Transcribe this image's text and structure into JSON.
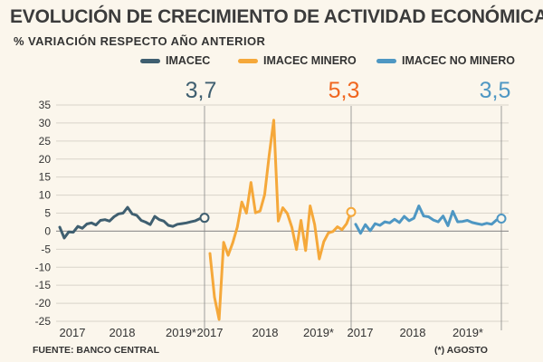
{
  "chart_data": {
    "type": "line",
    "title": "EVOLUCIÓN DE CRECIMIENTO DE ACTIVIDAD ECONÓMICA",
    "subtitle": "% VARIACIÓN RESPECTO AÑO ANTERIOR",
    "ylim": [
      -25,
      35
    ],
    "yticks": [
      35,
      30,
      25,
      20,
      15,
      10,
      5,
      0,
      -5,
      -10,
      -15,
      -20,
      -25
    ],
    "source": "FUENTE: BANCO CENTRAL",
    "footnote": "(*) AGOSTO",
    "series": [
      {
        "name": "IMACEC",
        "color": "#3f5f70",
        "x_labels": [
          "2017",
          "2018",
          "2019*"
        ],
        "last_value_label": "3,7",
        "values": [
          1.1,
          -1.9,
          -0.2,
          -0.3,
          1.3,
          0.8,
          2.0,
          2.3,
          1.7,
          3.0,
          3.2,
          2.8,
          4.0,
          4.8,
          5.0,
          6.6,
          4.8,
          4.4,
          3.0,
          2.5,
          1.8,
          4.1,
          3.2,
          2.8,
          1.6,
          1.3,
          1.9,
          2.1,
          2.3,
          2.6,
          2.9,
          3.5,
          3.7
        ]
      },
      {
        "name": "IMACEC MINERO",
        "color": "#f5a83a",
        "x_labels": [
          "2017",
          "2018",
          "2019*"
        ],
        "last_value_label": "5,3",
        "values": [
          -6.2,
          -18.3,
          -24.5,
          -3.1,
          -6.7,
          -3.2,
          1.1,
          8.1,
          5.0,
          13.5,
          5.1,
          5.6,
          10.1,
          21.0,
          30.8,
          2.8,
          6.5,
          4.9,
          1.0,
          -5.1,
          3.0,
          -5.4,
          7.0,
          1.8,
          -7.7,
          -2.9,
          -0.5,
          -0.1,
          1.2,
          0.4,
          2.1,
          5.3
        ]
      },
      {
        "name": "IMACEC NO MINERO",
        "color": "#4e97c3",
        "x_labels": [
          "2017",
          "2018",
          "2019*"
        ],
        "last_value_label": "3,5",
        "values": [
          1.9,
          -0.6,
          1.8,
          0.1,
          2.1,
          1.6,
          2.6,
          2.3,
          3.3,
          2.4,
          4.1,
          2.9,
          3.6,
          7.0,
          4.2,
          4.0,
          3.1,
          2.6,
          4.2,
          1.5,
          5.5,
          2.6,
          2.7,
          3.0,
          2.4,
          2.1,
          1.8,
          2.2,
          1.9,
          3.1,
          3.5
        ]
      }
    ]
  }
}
